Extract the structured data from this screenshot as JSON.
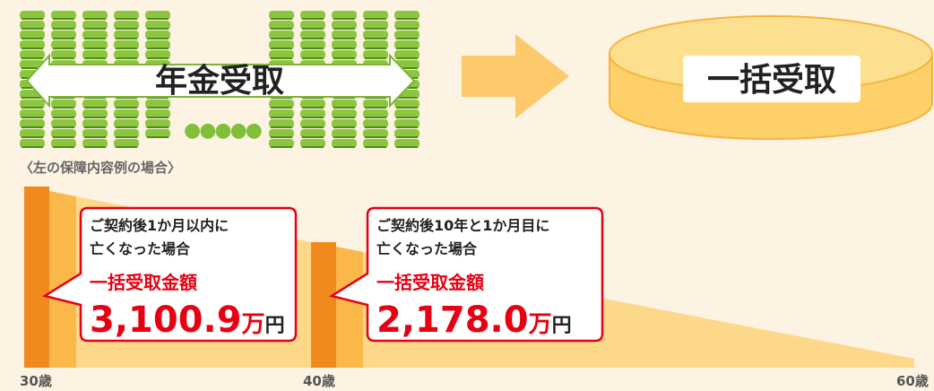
{
  "top": {
    "annuity_label": "年金受取",
    "lump_label": "一括受取",
    "dots": "●●●●●"
  },
  "note": "〈左の保障内容例の場合〉",
  "callouts": [
    {
      "line1": "ご契約後1か月以内に",
      "line2": "亡くなった場合",
      "heading": "一括受取金額",
      "amount": "3,100.9",
      "unit": "万",
      "currency": "円"
    },
    {
      "line1": "ご契約後10年と1か月目に",
      "line2": "亡くなった場合",
      "heading": "一括受取金額",
      "amount": "2,178.0",
      "unit": "万",
      "currency": "円"
    }
  ],
  "ages": [
    "30歳",
    "40歳",
    "60歳"
  ]
}
